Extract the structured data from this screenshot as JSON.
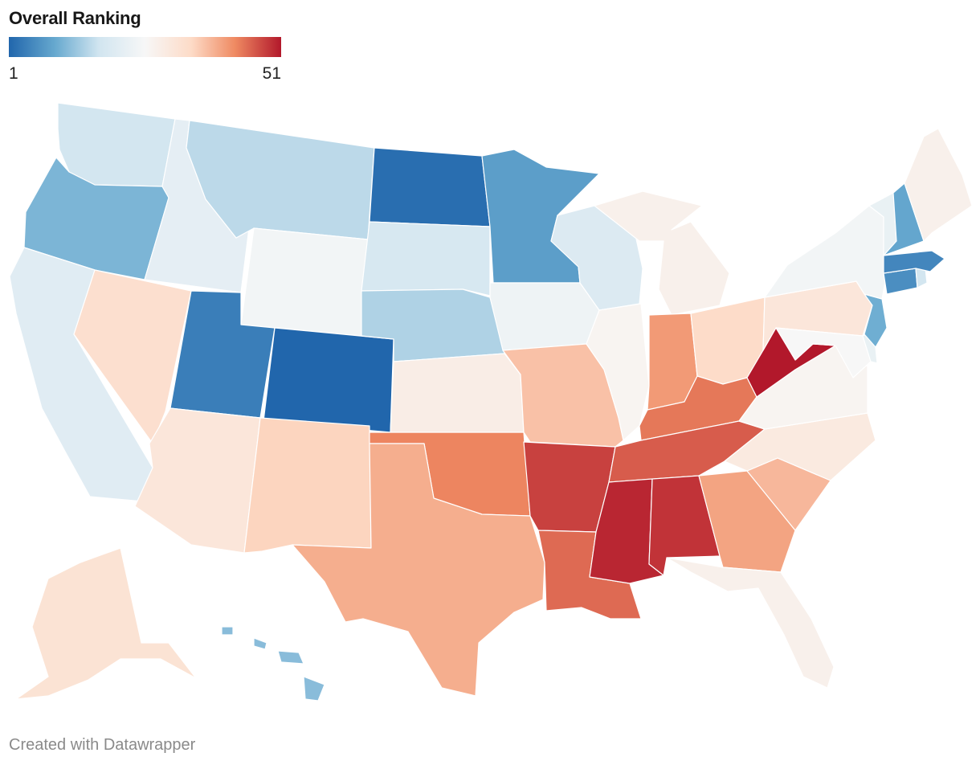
{
  "legend": {
    "title": "Overall Ranking",
    "min_label": "1",
    "max_label": "51",
    "color_stops": [
      "#2166ac",
      "#67a9cf",
      "#d1e5f0",
      "#f7f7f7",
      "#fddbc7",
      "#ef8a62",
      "#b2182b"
    ]
  },
  "credit": "Created with Datawrapper",
  "map_data": {
    "type": "choropleth",
    "metric": "Overall Ranking",
    "range": [
      1,
      51
    ],
    "states": [
      {
        "id": "WA",
        "name": "Washington",
        "rank": 18
      },
      {
        "id": "OR",
        "name": "Oregon",
        "rank": 11
      },
      {
        "id": "CA",
        "name": "California",
        "rank": 21
      },
      {
        "id": "ID",
        "name": "Idaho",
        "rank": 22
      },
      {
        "id": "NV",
        "name": "Nevada",
        "rank": 33
      },
      {
        "id": "MT",
        "name": "Montana",
        "rank": 16
      },
      {
        "id": "WY",
        "name": "Wyoming",
        "rank": 25
      },
      {
        "id": "UT",
        "name": "Utah",
        "rank": 4
      },
      {
        "id": "AZ",
        "name": "Arizona",
        "rank": 31
      },
      {
        "id": "CO",
        "name": "Colorado",
        "rank": 1
      },
      {
        "id": "NM",
        "name": "New Mexico",
        "rank": 35
      },
      {
        "id": "ND",
        "name": "North Dakota",
        "rank": 2
      },
      {
        "id": "SD",
        "name": "South Dakota",
        "rank": 19
      },
      {
        "id": "NE",
        "name": "Nebraska",
        "rank": 15
      },
      {
        "id": "KS",
        "name": "Kansas",
        "rank": 29
      },
      {
        "id": "OK",
        "name": "Oklahoma",
        "rank": 43
      },
      {
        "id": "TX",
        "name": "Texas",
        "rank": 39
      },
      {
        "id": "MN",
        "name": "Minnesota",
        "rank": 8
      },
      {
        "id": "IA",
        "name": "Iowa",
        "rank": 24
      },
      {
        "id": "MO",
        "name": "Missouri",
        "rank": 37
      },
      {
        "id": "AR",
        "name": "Arkansas",
        "rank": 48
      },
      {
        "id": "LA",
        "name": "Louisiana",
        "rank": 45
      },
      {
        "id": "WI",
        "name": "Wisconsin",
        "rank": 20
      },
      {
        "id": "IL",
        "name": "Illinois",
        "rank": 27
      },
      {
        "id": "MI",
        "name": "Michigan",
        "rank": 28
      },
      {
        "id": "IN",
        "name": "Indiana",
        "rank": 41
      },
      {
        "id": "OH",
        "name": "Ohio",
        "rank": 34
      },
      {
        "id": "KY",
        "name": "Kentucky",
        "rank": 44
      },
      {
        "id": "TN",
        "name": "Tennessee",
        "rank": 46
      },
      {
        "id": "MS",
        "name": "Mississippi",
        "rank": 50
      },
      {
        "id": "AL",
        "name": "Alabama",
        "rank": 49
      },
      {
        "id": "GA",
        "name": "Georgia",
        "rank": 40
      },
      {
        "id": "FL",
        "name": "Florida",
        "rank": 28
      },
      {
        "id": "SC",
        "name": "South Carolina",
        "rank": 38
      },
      {
        "id": "NC",
        "name": "North Carolina",
        "rank": 30
      },
      {
        "id": "VA",
        "name": "Virginia",
        "rank": 27
      },
      {
        "id": "WV",
        "name": "West Virginia",
        "rank": 51
      },
      {
        "id": "MD",
        "name": "Maryland",
        "rank": 26
      },
      {
        "id": "DE",
        "name": "Delaware",
        "rank": 23
      },
      {
        "id": "PA",
        "name": "Pennsylvania",
        "rank": 31
      },
      {
        "id": "NJ",
        "name": "New Jersey",
        "rank": 10
      },
      {
        "id": "NY",
        "name": "New York",
        "rank": 25
      },
      {
        "id": "CT",
        "name": "Connecticut",
        "rank": 6
      },
      {
        "id": "RI",
        "name": "Rhode Island",
        "rank": 18
      },
      {
        "id": "MA",
        "name": "Massachusetts",
        "rank": 5
      },
      {
        "id": "VT",
        "name": "Vermont",
        "rank": 23
      },
      {
        "id": "NH",
        "name": "New Hampshire",
        "rank": 9
      },
      {
        "id": "ME",
        "name": "Maine",
        "rank": 28
      },
      {
        "id": "AK",
        "name": "Alaska",
        "rank": 32
      },
      {
        "id": "HI",
        "name": "Hawaii",
        "rank": 12
      }
    ]
  }
}
